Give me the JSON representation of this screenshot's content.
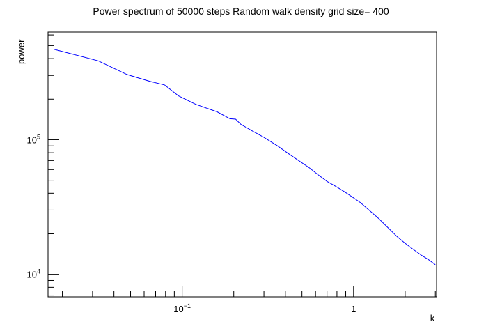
{
  "chart_data": {
    "type": "line",
    "title": "Power spectrum of 50000 steps Random walk density grid size= 400",
    "xlabel": "k",
    "ylabel": "power",
    "xscale": "log",
    "yscale": "log",
    "xlim": [
      0.0165,
      3.05
    ],
    "ylim": [
      6800,
      630000
    ],
    "line_color": "#0000ff",
    "grid": false,
    "x_ticks": [
      {
        "value": 0.1,
        "base": "10",
        "exp": "−1"
      },
      {
        "value": 1,
        "base": "1",
        "exp": ""
      }
    ],
    "y_ticks": [
      {
        "value": 10000,
        "base": "10",
        "exp": "4"
      },
      {
        "value": 100000,
        "base": "10",
        "exp": "5"
      }
    ],
    "series": [
      {
        "x": [
          0.0178,
          0.0324,
          0.0476,
          0.0643,
          0.079,
          0.095,
          0.12,
          0.16,
          0.19,
          0.205,
          0.22,
          0.26,
          0.3,
          0.36,
          0.41,
          0.47,
          0.55,
          0.62,
          0.7,
          0.8,
          0.9,
          1.0,
          1.1,
          1.25,
          1.4,
          1.6,
          1.8,
          2.0,
          2.2,
          2.5,
          2.75,
          3.0
        ],
        "y": [
          470000,
          385000,
          305000,
          272000,
          255000,
          212000,
          183000,
          161000,
          143000,
          142000,
          130000,
          115000,
          104000,
          90000,
          80000,
          71000,
          62000,
          55000,
          49000,
          44500,
          40500,
          37000,
          34000,
          29500,
          26000,
          22000,
          19000,
          17000,
          15500,
          13800,
          12800,
          11800
        ]
      }
    ]
  }
}
